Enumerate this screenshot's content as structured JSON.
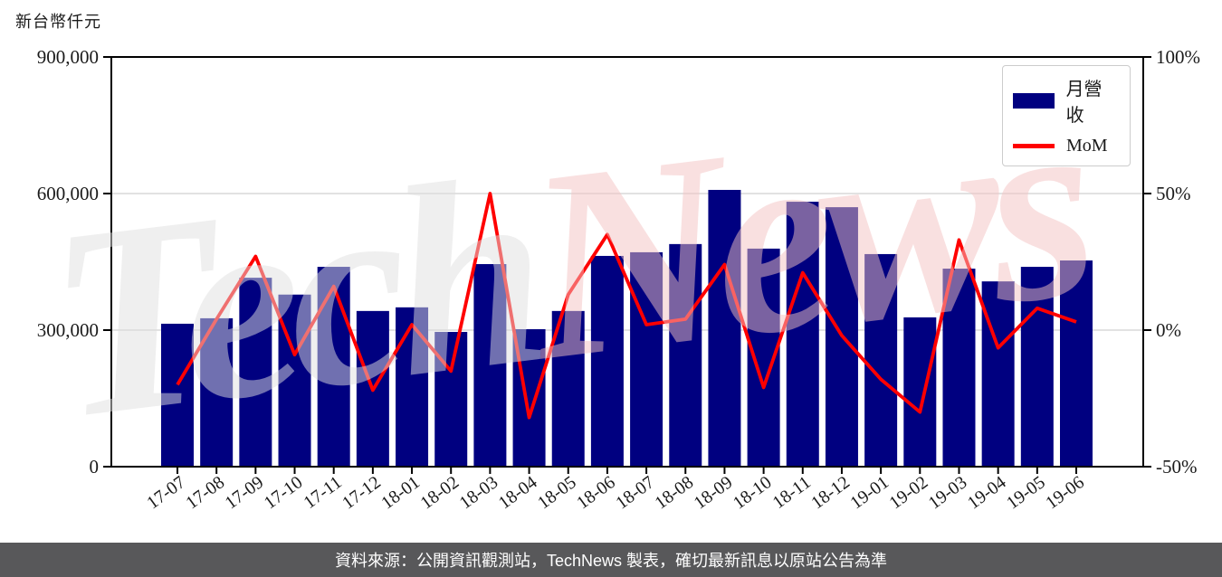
{
  "title": "新台幣仟元",
  "watermark": {
    "part1": "Tech",
    "part2": "News",
    "color1": "#e0e0e0",
    "color2": "#f4c3c3"
  },
  "legend": {
    "bar_label": "月營收",
    "line_label": "MoM"
  },
  "footer": {
    "text": "資料來源：公開資訊觀測站，TechNews 製表，確切最新訊息以原站公告為準",
    "background": "#58585a",
    "text_color": "#ffffff"
  },
  "colors": {
    "bar": "#000080",
    "line": "#ff0000",
    "grid": "#d9d9d9",
    "axis": "#000000",
    "tick_text": "#1a1a1a"
  },
  "chart_data": {
    "type": "bar",
    "subtype": "bar-with-line-overlay",
    "title": "新台幣仟元",
    "xlabel": "",
    "ylabel": "新台幣仟元",
    "y2label": "%",
    "grid": "horizontal",
    "legend_position": "top-right",
    "categories": [
      "17-07",
      "17-08",
      "17-09",
      "17-10",
      "17-11",
      "17-12",
      "18-01",
      "18-02",
      "18-03",
      "18-04",
      "18-05",
      "18-06",
      "18-07",
      "18-08",
      "18-09",
      "18-10",
      "18-11",
      "18-12",
      "19-01",
      "19-02",
      "19-03",
      "19-04",
      "19-05",
      "19-06"
    ],
    "series": [
      {
        "name": "月營收",
        "type": "bar",
        "axis": "left",
        "color": "#000080",
        "values": [
          314000,
          326000,
          415000,
          378000,
          439000,
          342000,
          350000,
          296000,
          445000,
          302000,
          342000,
          463000,
          471000,
          489000,
          608000,
          479000,
          582000,
          570000,
          467000,
          328000,
          435000,
          407000,
          439000,
          453000
        ]
      },
      {
        "name": "MoM",
        "type": "line",
        "axis": "right",
        "color": "#ff0000",
        "values": [
          -20,
          4,
          27,
          -9,
          16,
          -22,
          2,
          -15,
          50,
          -32,
          13,
          35,
          2,
          4,
          24,
          -21,
          21,
          -2,
          -18,
          -30,
          33,
          -6.5,
          8,
          3
        ]
      }
    ],
    "left_axis": {
      "range": [
        0,
        900000
      ],
      "ticks": [
        0,
        300000,
        600000,
        900000
      ],
      "tick_labels": [
        "0",
        "300,000",
        "600,000",
        "900,000"
      ]
    },
    "right_axis": {
      "range": [
        -50,
        100
      ],
      "ticks": [
        -50,
        0,
        50,
        100
      ],
      "tick_labels": [
        "-50%",
        "0%",
        "50%",
        "100%"
      ]
    }
  }
}
